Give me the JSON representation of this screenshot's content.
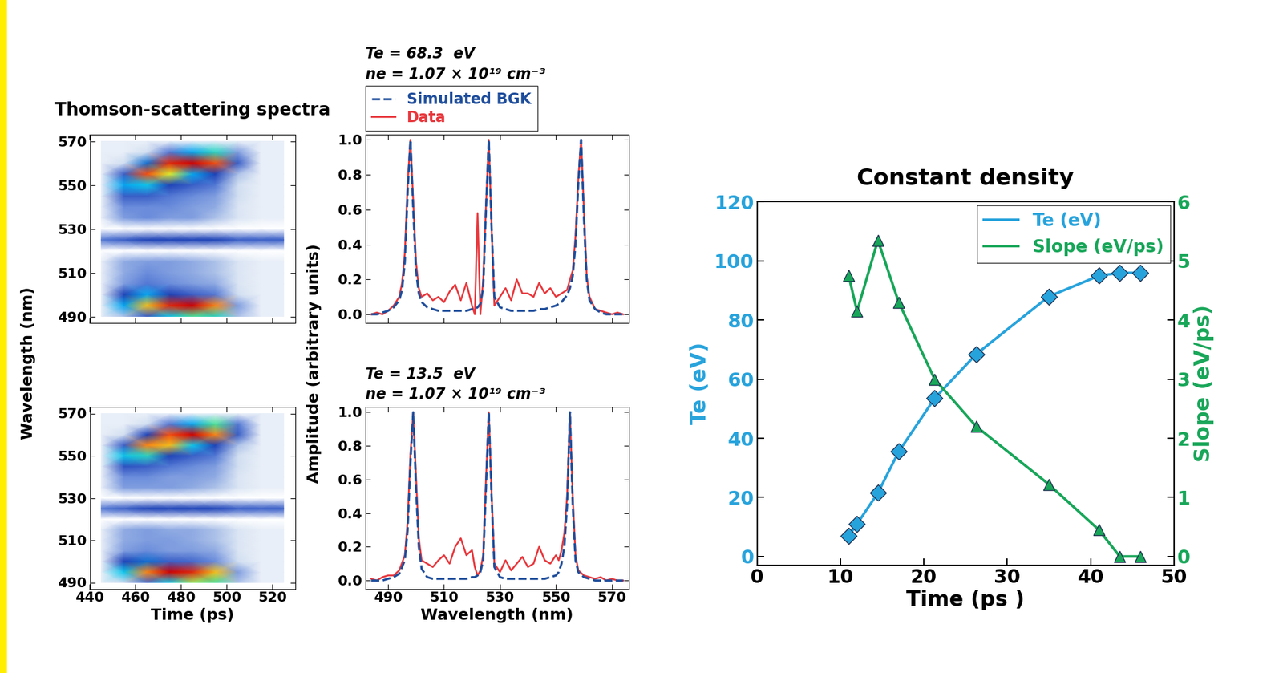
{
  "chart_data": [
    {
      "type": "heatmap",
      "title": "Thomson-scattering spectra",
      "ylabel": "Wavelength (nm)",
      "x": [
        445,
        455,
        465,
        475,
        485,
        495,
        505,
        515,
        525
      ],
      "y": [
        490,
        495,
        500,
        505,
        510,
        515,
        520,
        525,
        530,
        535,
        540,
        545,
        550,
        555,
        560,
        565,
        570
      ],
      "cells": [
        [
          0.05,
          0.15,
          0.3,
          0.5,
          0.6,
          0.55,
          0.15,
          0.05,
          0.05
        ],
        [
          0.05,
          0.45,
          0.75,
          0.9,
          0.95,
          0.8,
          0.2,
          0.05,
          0.05
        ],
        [
          0.05,
          0.35,
          0.45,
          0.35,
          0.3,
          0.25,
          0.1,
          0.05,
          0.05
        ],
        [
          0.05,
          0.2,
          0.25,
          0.22,
          0.2,
          0.18,
          0.08,
          0.05,
          0.05
        ],
        [
          0.05,
          0.18,
          0.22,
          0.2,
          0.18,
          0.15,
          0.08,
          0.05,
          0.05
        ],
        [
          0.05,
          0.18,
          0.2,
          0.2,
          0.18,
          0.15,
          0.08,
          0.05,
          0.05
        ],
        [
          0,
          0,
          0,
          0,
          0,
          0,
          0,
          0,
          0
        ],
        [
          0.25,
          0.3,
          0.35,
          0.35,
          0.35,
          0.35,
          0.3,
          0.3,
          0.3
        ],
        [
          0,
          0,
          0,
          0,
          0,
          0,
          0,
          0,
          0
        ],
        [
          0.05,
          0.2,
          0.22,
          0.2,
          0.2,
          0.15,
          0.08,
          0.05,
          0.05
        ],
        [
          0.05,
          0.22,
          0.22,
          0.22,
          0.2,
          0.18,
          0.08,
          0.05,
          0.05
        ],
        [
          0.05,
          0.3,
          0.3,
          0.25,
          0.22,
          0.2,
          0.1,
          0.05,
          0.05
        ],
        [
          0.05,
          0.45,
          0.5,
          0.35,
          0.3,
          0.25,
          0.1,
          0.05,
          0.05
        ],
        [
          0.05,
          0.3,
          0.85,
          0.7,
          0.45,
          0.35,
          0.15,
          0.05,
          0.05
        ],
        [
          0.05,
          0.1,
          0.4,
          0.9,
          0.95,
          0.85,
          0.3,
          0.05,
          0.05
        ],
        [
          0.05,
          0.05,
          0.1,
          0.25,
          0.45,
          0.55,
          0.2,
          0.05,
          0.05
        ],
        [
          0.05,
          0.05,
          0.05,
          0.05,
          0.05,
          0.05,
          0.05,
          0.05,
          0.05
        ]
      ],
      "xlim": [
        440,
        530
      ],
      "xticks": [
        440,
        460,
        480,
        500,
        520
      ],
      "ylim": [
        487,
        573
      ],
      "yticks": [
        490,
        510,
        530,
        550,
        570
      ],
      "tick_labels": "y"
    },
    {
      "type": "line",
      "annotations": [
        "Te = 68.3  eV",
        "ne = 1.07 × 10¹⁹ cm⁻³"
      ],
      "ylabel": "Amplitude (arbitrary units)",
      "legend": "lower left",
      "x": [
        484,
        486,
        488,
        490,
        492,
        494,
        495,
        496,
        497,
        498,
        499,
        500,
        501,
        502,
        504,
        506,
        508,
        510,
        512,
        514,
        516,
        518,
        520,
        521,
        522,
        523,
        524,
        525,
        526,
        527,
        528,
        530,
        532,
        534,
        536,
        538,
        540,
        542,
        544,
        546,
        548,
        550,
        552,
        554,
        555,
        556,
        557,
        558,
        559,
        560,
        561,
        562,
        564,
        566,
        568,
        570,
        572,
        574
      ],
      "series": [
        {
          "name": "Simulated BGK",
          "color": "#1f4e9c",
          "line_style": "dashed",
          "values": [
            0,
            0,
            0.01,
            0.02,
            0.04,
            0.08,
            0.14,
            0.3,
            0.7,
            1.0,
            0.6,
            0.25,
            0.12,
            0.07,
            0.04,
            0.03,
            0.02,
            0.02,
            0.02,
            0.02,
            0.02,
            0.02,
            0.03,
            0.03,
            0.04,
            0.06,
            0.15,
            0.6,
            1.0,
            0.5,
            0.1,
            0.04,
            0.03,
            0.02,
            0.02,
            0.02,
            0.02,
            0.02,
            0.03,
            0.03,
            0.04,
            0.05,
            0.07,
            0.11,
            0.15,
            0.22,
            0.4,
            0.75,
            1.0,
            0.55,
            0.2,
            0.08,
            0.03,
            0.01,
            0,
            0,
            0,
            0
          ]
        },
        {
          "name": "Data",
          "color": "#e8383d",
          "line_style": "solid",
          "values": [
            0,
            0.01,
            0,
            0.02,
            0.05,
            0.1,
            0.18,
            0.35,
            0.75,
            1.0,
            0.65,
            0.3,
            0.15,
            0.1,
            0.12,
            0.08,
            0.1,
            0.07,
            0.13,
            0.17,
            0.08,
            0.18,
            0.05,
            0.0,
            0.58,
            0.0,
            0.2,
            0.62,
            1.0,
            0.5,
            0.05,
            0.1,
            0.15,
            0.08,
            0.2,
            0.12,
            0.12,
            0.1,
            0.18,
            0.12,
            0.15,
            0.1,
            0.12,
            0.14,
            0.2,
            0.25,
            0.45,
            0.78,
            1.0,
            0.6,
            0.22,
            0.1,
            0.03,
            0.02,
            0.01,
            0,
            0.01,
            0
          ]
        }
      ],
      "xlim": [
        482,
        576
      ],
      "xticks": [
        490,
        510,
        530,
        550,
        570
      ],
      "ylim": [
        -0.05,
        1.03
      ],
      "yticks": [
        {
          "value": 0,
          "label": "0.0"
        },
        {
          "value": 0.2,
          "label": "0.2"
        },
        {
          "value": 0.4,
          "label": "0.4"
        },
        {
          "value": 0.6,
          "label": "0.6"
        },
        {
          "value": 0.8,
          "label": "0.8"
        },
        {
          "value": 1,
          "label": "1.0"
        }
      ],
      "tick_labels": "y"
    },
    {
      "type": "heatmap",
      "xlabel": "Time (ps)",
      "x": [
        445,
        455,
        465,
        475,
        485,
        495,
        505,
        515,
        525
      ],
      "y": [
        490,
        495,
        500,
        505,
        510,
        515,
        520,
        525,
        530,
        535,
        540,
        545,
        550,
        555,
        560,
        565,
        570
      ],
      "cells": [
        [
          0.05,
          0.12,
          0.28,
          0.5,
          0.65,
          0.6,
          0.15,
          0.05,
          0.05
        ],
        [
          0.05,
          0.5,
          0.8,
          0.95,
          0.9,
          0.75,
          0.2,
          0.05,
          0.05
        ],
        [
          0.05,
          0.35,
          0.4,
          0.3,
          0.28,
          0.22,
          0.1,
          0.05,
          0.05
        ],
        [
          0.05,
          0.2,
          0.22,
          0.2,
          0.2,
          0.18,
          0.08,
          0.05,
          0.05
        ],
        [
          0.05,
          0.18,
          0.2,
          0.2,
          0.18,
          0.15,
          0.08,
          0.05,
          0.05
        ],
        [
          0.05,
          0.18,
          0.2,
          0.18,
          0.18,
          0.15,
          0.08,
          0.05,
          0.05
        ],
        [
          0,
          0,
          0,
          0,
          0,
          0,
          0,
          0,
          0
        ],
        [
          0.25,
          0.3,
          0.35,
          0.35,
          0.35,
          0.35,
          0.3,
          0.3,
          0.3
        ],
        [
          0,
          0,
          0,
          0,
          0,
          0,
          0,
          0,
          0
        ],
        [
          0.05,
          0.2,
          0.2,
          0.2,
          0.18,
          0.15,
          0.08,
          0.05,
          0.05
        ],
        [
          0.05,
          0.22,
          0.22,
          0.2,
          0.2,
          0.18,
          0.08,
          0.05,
          0.05
        ],
        [
          0.05,
          0.32,
          0.3,
          0.25,
          0.22,
          0.2,
          0.1,
          0.05,
          0.05
        ],
        [
          0.05,
          0.5,
          0.55,
          0.35,
          0.3,
          0.25,
          0.1,
          0.05,
          0.05
        ],
        [
          0.05,
          0.3,
          0.8,
          0.75,
          0.5,
          0.35,
          0.15,
          0.05,
          0.05
        ],
        [
          0.05,
          0.1,
          0.35,
          0.85,
          0.95,
          0.8,
          0.3,
          0.05,
          0.05
        ],
        [
          0.05,
          0.05,
          0.1,
          0.25,
          0.45,
          0.6,
          0.25,
          0.05,
          0.05
        ],
        [
          0.05,
          0.05,
          0.05,
          0.05,
          0.05,
          0.05,
          0.05,
          0.05,
          0.05
        ]
      ],
      "xlim": [
        440,
        530
      ],
      "xticks": [
        440,
        460,
        480,
        500,
        520
      ],
      "ylim": [
        487,
        573
      ],
      "yticks": [
        490,
        510,
        530,
        550,
        570
      ]
    },
    {
      "type": "line",
      "annotations": [
        "Te = 13.5  eV",
        "ne = 1.07 × 10¹⁹ cm⁻³"
      ],
      "xlabel": "Wavelength (nm)",
      "x": [
        484,
        486,
        488,
        490,
        492,
        494,
        496,
        497,
        498,
        499,
        500,
        501,
        502,
        504,
        506,
        508,
        510,
        512,
        514,
        516,
        518,
        520,
        521,
        522,
        523,
        524,
        525,
        526,
        527,
        528,
        530,
        532,
        534,
        536,
        538,
        540,
        542,
        544,
        546,
        548,
        550,
        551,
        552,
        553,
        554,
        555,
        556,
        557,
        558,
        560,
        562,
        564,
        566,
        568,
        570,
        572,
        574
      ],
      "series": [
        {
          "name": "Simulated BGK",
          "color": "#1f4e9c",
          "line_style": "dashed",
          "values": [
            0,
            0,
            0,
            0.01,
            0.02,
            0.04,
            0.12,
            0.3,
            0.7,
            1.0,
            0.55,
            0.2,
            0.07,
            0.02,
            0.01,
            0.01,
            0.01,
            0.01,
            0.01,
            0.01,
            0.01,
            0.02,
            0.02,
            0.03,
            0.05,
            0.12,
            0.55,
            1.0,
            0.5,
            0.08,
            0.02,
            0.01,
            0.01,
            0.01,
            0.01,
            0.01,
            0.01,
            0.01,
            0.01,
            0.02,
            0.03,
            0.05,
            0.1,
            0.2,
            0.45,
            1.0,
            0.45,
            0.12,
            0.05,
            0.02,
            0.01,
            0,
            0,
            0,
            0,
            0,
            0
          ]
        },
        {
          "name": "Data",
          "color": "#e8383d",
          "line_style": "solid",
          "values": [
            0.01,
            0,
            0.02,
            0.03,
            0.03,
            0.06,
            0.15,
            0.35,
            0.75,
            1.0,
            0.62,
            0.25,
            0.12,
            0.1,
            0.08,
            0.12,
            0.15,
            0.1,
            0.2,
            0.25,
            0.15,
            0.18,
            0.08,
            0.03,
            0.06,
            0.15,
            0.6,
            1.0,
            0.52,
            0.1,
            0.05,
            0.12,
            0.06,
            0.1,
            0.14,
            0.08,
            0.1,
            0.2,
            0.12,
            0.1,
            0.15,
            0.12,
            0.18,
            0.28,
            0.5,
            1.0,
            0.5,
            0.15,
            0.06,
            0.03,
            0.02,
            0.01,
            0.02,
            0.0,
            0.01,
            0.0,
            0.0
          ]
        }
      ],
      "xlim": [
        482,
        576
      ],
      "xticks": [
        490,
        510,
        530,
        550,
        570
      ],
      "ylim": [
        -0.05,
        1.03
      ],
      "yticks": [
        {
          "value": 0,
          "label": "0.0"
        },
        {
          "value": 0.2,
          "label": "0.2"
        },
        {
          "value": 0.4,
          "label": "0.4"
        },
        {
          "value": 0.6,
          "label": "0.6"
        },
        {
          "value": 0.8,
          "label": "0.8"
        },
        {
          "value": 1,
          "label": "1.0"
        }
      ]
    },
    {
      "type": "line",
      "title": "Constant density",
      "xlabel": "Time (ps )",
      "ylabel": "Te (eV)",
      "y2label": "Slope (eV/ps)",
      "legend": "upper right",
      "x": [
        11,
        12,
        14.5,
        17,
        21.3,
        26.3,
        35,
        41,
        43.5,
        46
      ],
      "series": [
        {
          "name": "Te (eV)",
          "color": "#27a3dc",
          "marker": "diamond",
          "values": [
            7,
            11,
            21.5,
            35.5,
            53.5,
            68.5,
            88,
            95,
            96,
            96
          ]
        },
        {
          "name": "Slope (eV/ps)",
          "color": "#18a659",
          "marker": "triangle",
          "axis": "y2",
          "values": [
            4.75,
            4.15,
            5.35,
            4.3,
            3.0,
            2.2,
            1.22,
            0.45,
            0,
            0
          ]
        }
      ],
      "xlim": [
        0,
        50
      ],
      "xticks": [
        0,
        10,
        20,
        30,
        40,
        50
      ],
      "ylim": [
        -3,
        120
      ],
      "yticks": [
        0,
        20,
        40,
        60,
        80,
        100,
        120
      ],
      "y2lim": [
        -0.15,
        6
      ],
      "y2ticks": [
        0,
        1,
        2,
        3,
        4,
        5,
        6
      ]
    }
  ]
}
